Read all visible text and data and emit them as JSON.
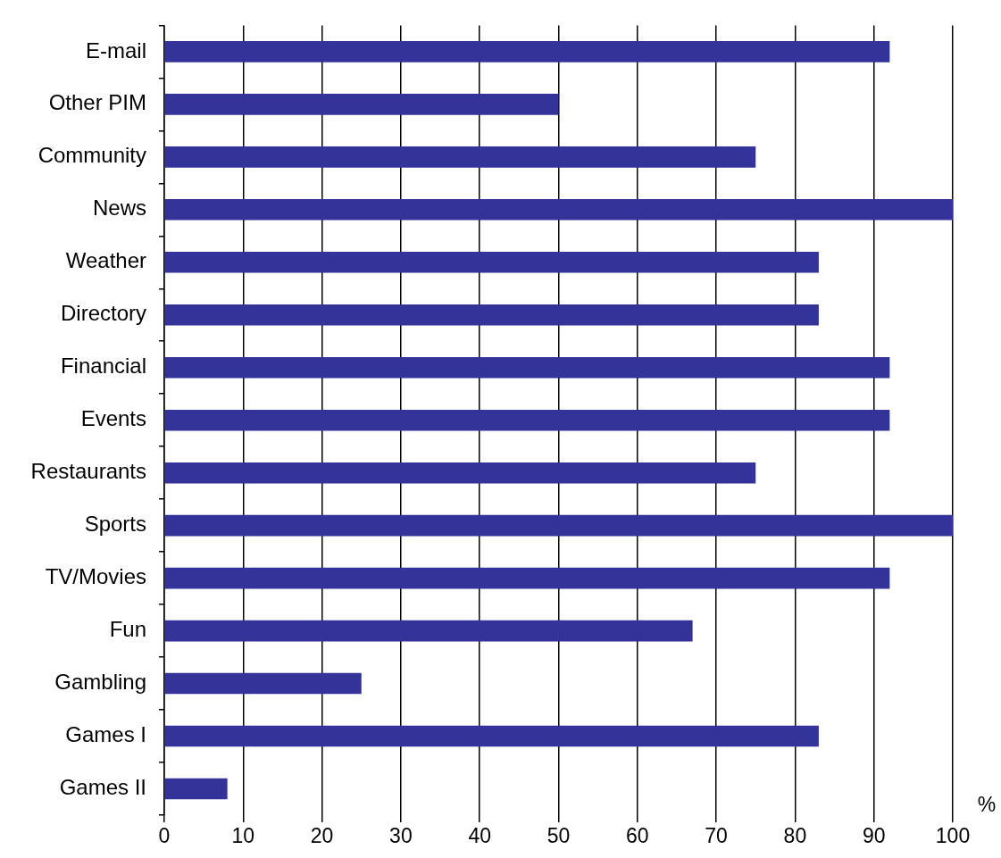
{
  "chart_data": {
    "type": "bar",
    "orientation": "horizontal",
    "xlabel": "%",
    "categories": [
      "E-mail",
      "Other PIM",
      "Community",
      "News",
      "Weather",
      "Directory",
      "Financial",
      "Events",
      "Restaurants",
      "Sports",
      "TV/Movies",
      "Fun",
      "Gambling",
      "Games I",
      "Games II"
    ],
    "values": [
      92,
      50,
      75,
      100,
      83,
      83,
      92,
      92,
      75,
      100,
      92,
      67,
      25,
      83,
      8
    ],
    "color": "#333399",
    "xlim": [
      0,
      100
    ],
    "xticks": [
      0,
      10,
      20,
      30,
      40,
      50,
      60,
      70,
      80,
      90,
      100
    ],
    "grid": "x",
    "legend": false
  }
}
